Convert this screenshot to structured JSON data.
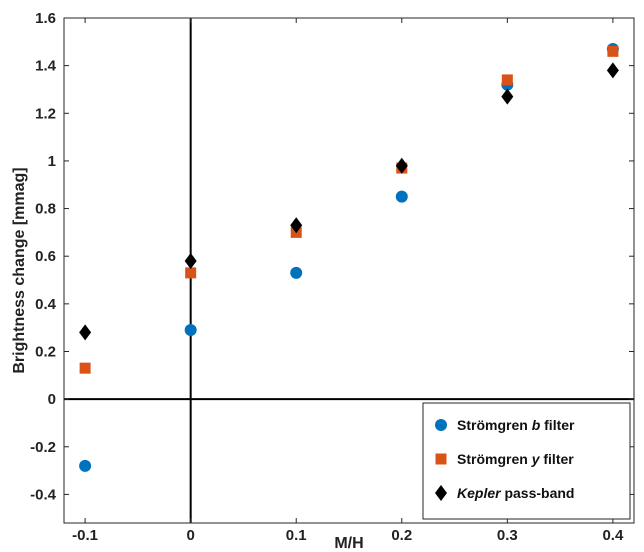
{
  "chart_data": {
    "type": "scatter",
    "xlabel": "M/H",
    "ylabel": "Brightness change [mmag]",
    "xlim": [
      -0.12,
      0.42
    ],
    "ylim": [
      -0.52,
      1.6
    ],
    "x_ticks": [
      -0.1,
      0,
      0.1,
      0.2,
      0.3,
      0.4
    ],
    "x_tick_labels": [
      "-0.1",
      "0",
      "0.1",
      "0.2",
      "0.3",
      "0.4"
    ],
    "y_ticks": [
      -0.4,
      -0.2,
      0,
      0.2,
      0.4,
      0.6,
      0.8,
      1,
      1.2,
      1.4,
      1.6
    ],
    "y_tick_labels": [
      "-0.4",
      "-0.2",
      "0",
      "0.2",
      "0.4",
      "0.6",
      "0.8",
      "1",
      "1.2",
      "1.4",
      "1.6"
    ],
    "grid": false,
    "reference_lines": {
      "x": 0,
      "y": 0
    },
    "legend_position": "bottom-right",
    "series": [
      {
        "name_prefix": "Strömgren ",
        "name_emph": "b",
        "name_suffix": " filter",
        "marker": "circle",
        "color": "#0072BD",
        "x": [
          -0.1,
          0,
          0.1,
          0.2,
          0.3,
          0.4
        ],
        "y": [
          -0.28,
          0.29,
          0.53,
          0.85,
          1.32,
          1.47
        ]
      },
      {
        "name_prefix": "Strömgren ",
        "name_emph": "y",
        "name_suffix": " filter",
        "marker": "square",
        "color": "#D95319",
        "x": [
          -0.1,
          0,
          0.1,
          0.2,
          0.3,
          0.4
        ],
        "y": [
          0.13,
          0.53,
          0.7,
          0.97,
          1.34,
          1.46
        ]
      },
      {
        "name_prefix": "",
        "name_emph": "Kepler",
        "name_suffix": " pass-band",
        "marker": "diamond",
        "color": "#000000",
        "x": [
          -0.1,
          0,
          0.1,
          0.2,
          0.3,
          0.4
        ],
        "y": [
          0.28,
          0.58,
          0.73,
          0.98,
          1.27,
          1.38
        ]
      }
    ]
  }
}
